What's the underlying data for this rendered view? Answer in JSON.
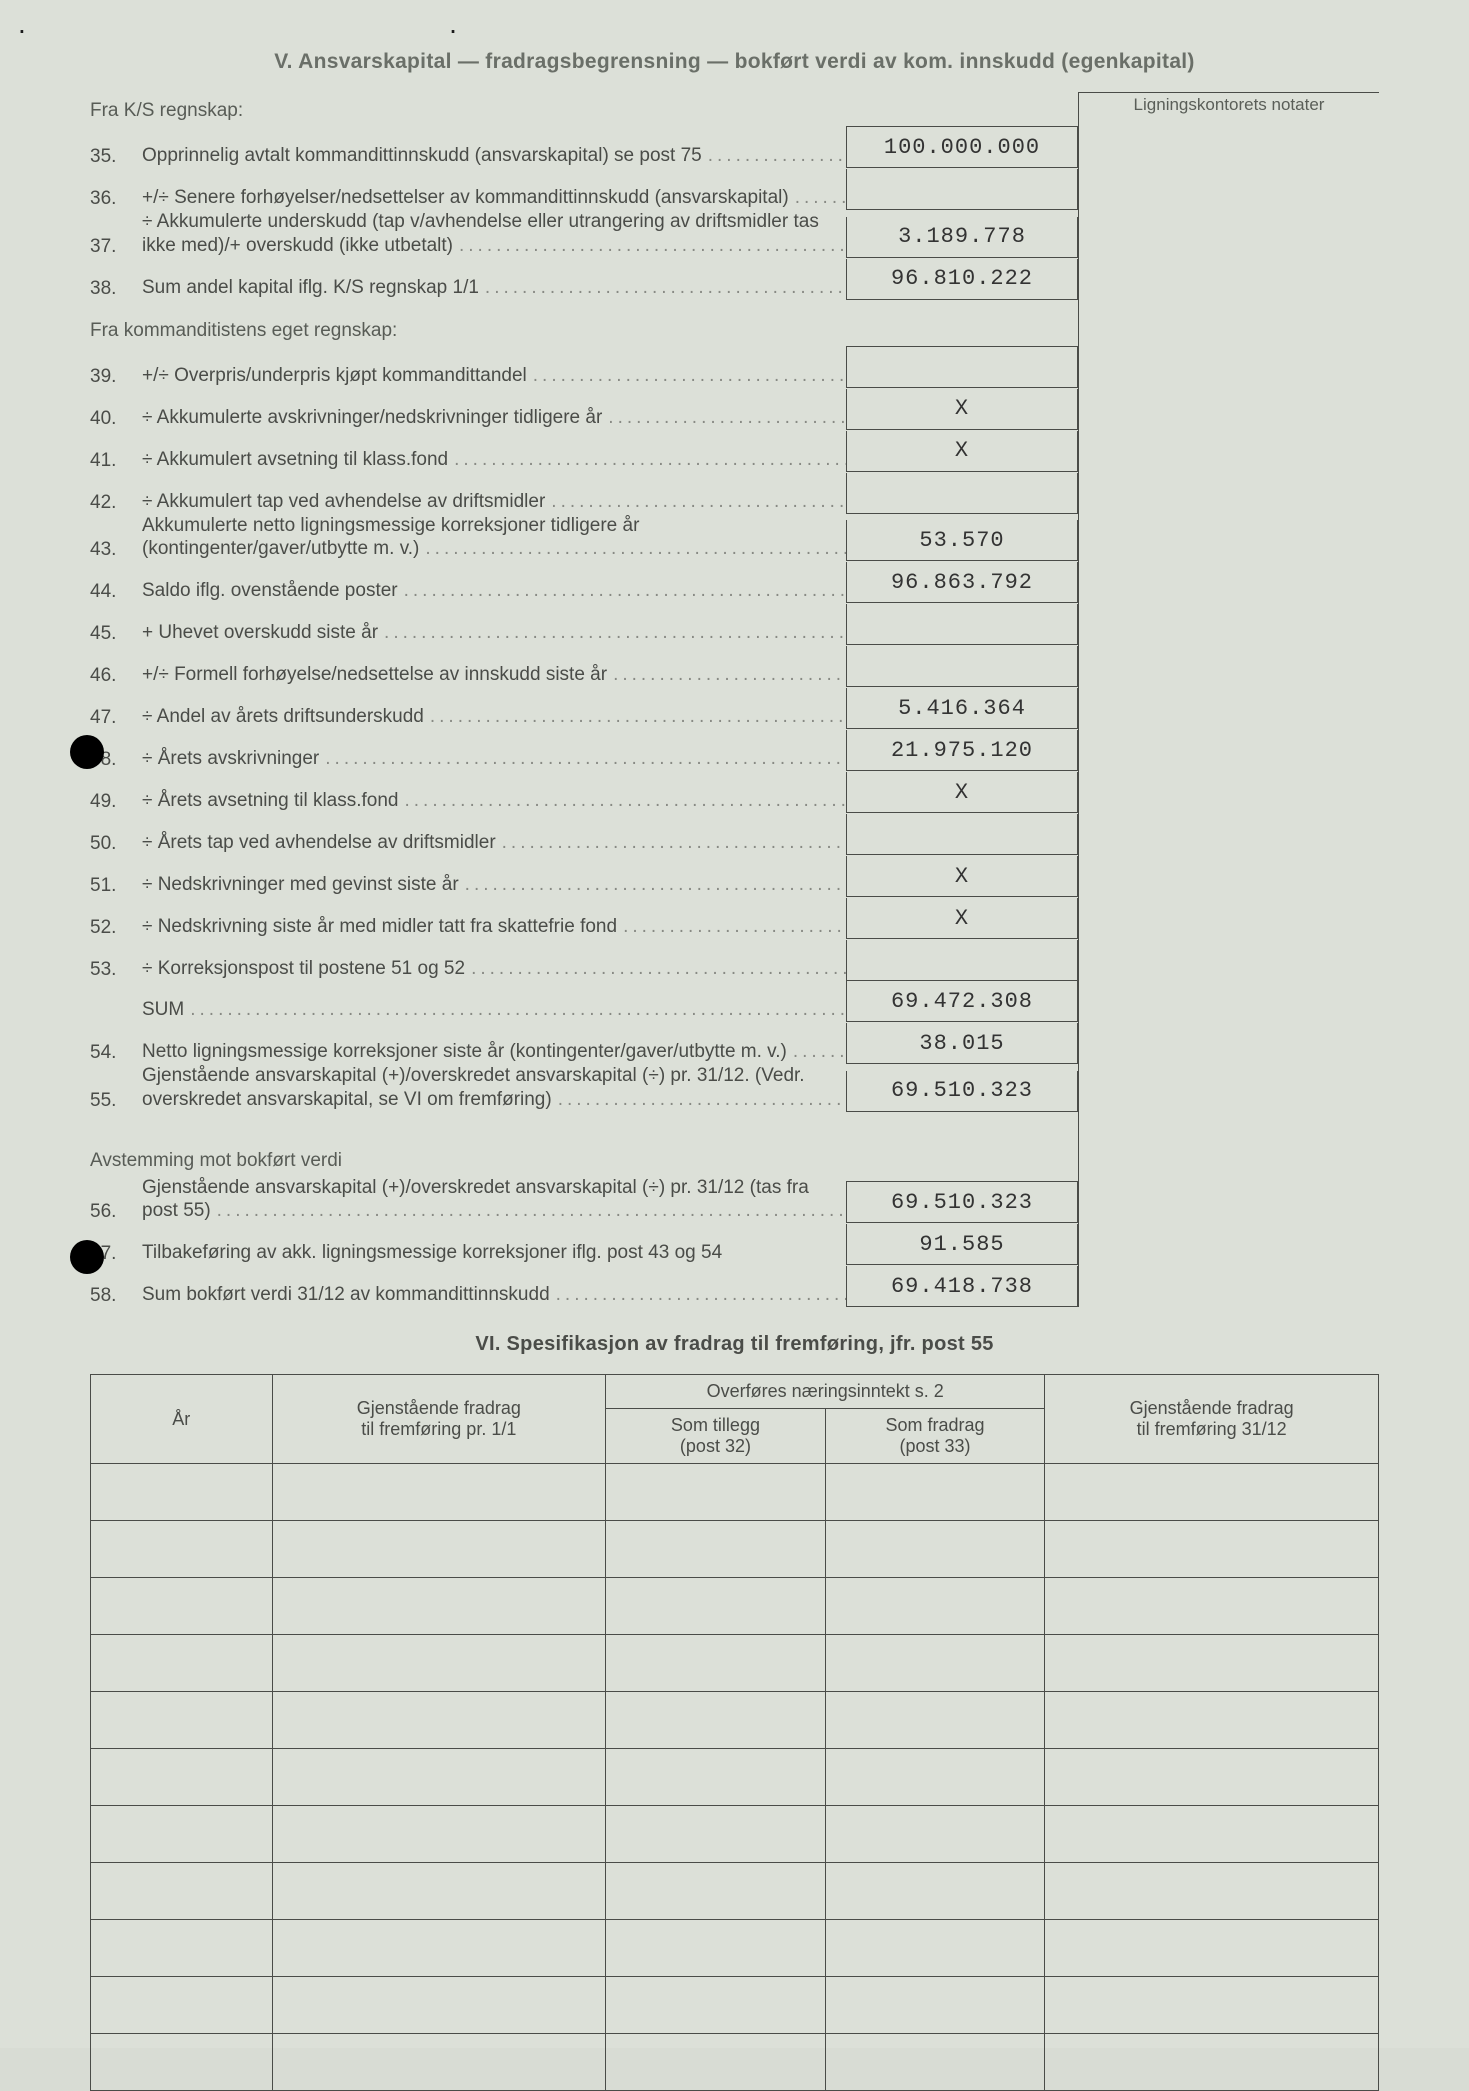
{
  "sectionV_title": "V.  Ansvarskapital — fradragsbegrensning — bokført verdi av kom. innskudd (egenkapital)",
  "notes_header": "Ligningskontorets notater",
  "heading_ks": "Fra K/S regnskap:",
  "heading_kommanditist": "Fra kommanditistens eget regnskap:",
  "heading_avstemming": "Avstemming mot bokført verdi",
  "rows": {
    "r35": {
      "num": "35.",
      "label": "Opprinnelig avtalt kommandittinnskudd (ansvarskapital) se post 75",
      "value": "100.000.000"
    },
    "r36": {
      "num": "36.",
      "label": "+/÷ Senere forhøyelser/nedsettelser av kommandittinnskudd (ansvarskapital)",
      "value": ""
    },
    "r37": {
      "num": "37.",
      "label": "÷ Akkumulerte underskudd (tap v/avhendelse eller utrangering av driftsmidler tas ikke med)/+ overskudd (ikke utbetalt)",
      "value": "3.189.778"
    },
    "r38": {
      "num": "38.",
      "label": "Sum andel kapital iflg. K/S regnskap 1/1",
      "value": "96.810.222"
    },
    "r39": {
      "num": "39.",
      "label": "+/÷ Overpris/underpris kjøpt kommandittandel",
      "value": ""
    },
    "r40": {
      "num": "40.",
      "label": "÷ Akkumulerte avskrivninger/nedskrivninger tidligere år",
      "value": "X"
    },
    "r41": {
      "num": "41.",
      "label": "÷ Akkumulert avsetning til klass.fond",
      "value": "X"
    },
    "r42": {
      "num": "42.",
      "label": "÷ Akkumulert tap ved avhendelse av driftsmidler",
      "value": ""
    },
    "r43": {
      "num": "43.",
      "label": "Akkumulerte netto ligningsmessige korreksjoner tidligere år (kontingenter/gaver/utbytte m. v.)",
      "value": "53.570"
    },
    "r44": {
      "num": "44.",
      "label": "Saldo iflg. ovenstående poster",
      "value": "96.863.792"
    },
    "r45": {
      "num": "45.",
      "label": "+ Uhevet overskudd siste år",
      "value": ""
    },
    "r46": {
      "num": "46.",
      "label": "+/÷ Formell forhøyelse/nedsettelse av innskudd siste år",
      "value": ""
    },
    "r47": {
      "num": "47.",
      "label": "÷ Andel av årets driftsunderskudd",
      "value": "5.416.364"
    },
    "r48": {
      "num": "48.",
      "label": "÷ Årets avskrivninger",
      "value": "21.975.120"
    },
    "r49": {
      "num": "49.",
      "label": "÷ Årets avsetning til klass.fond",
      "value": "X"
    },
    "r50": {
      "num": "50.",
      "label": "÷ Årets tap ved avhendelse av driftsmidler",
      "value": ""
    },
    "r51": {
      "num": "51.",
      "label": "÷ Nedskrivninger med gevinst siste år",
      "value": "X"
    },
    "r52": {
      "num": "52.",
      "label": "÷ Nedskrivning siste år med midler tatt fra skattefrie fond",
      "value": "X"
    },
    "r53": {
      "num": "53.",
      "label": "÷ Korreksjonspost til postene 51 og 52",
      "value": ""
    },
    "rSum": {
      "num": "",
      "label": "SUM",
      "value": "69.472.308"
    },
    "r54": {
      "num": "54.",
      "label": "Netto ligningsmessige korreksjoner siste år (kontingenter/gaver/utbytte m. v.)",
      "value": "38.015"
    },
    "r55": {
      "num": "55.",
      "label": "Gjenstående ansvarskapital (+)/overskredet ansvarskapital (÷) pr. 31/12. (Vedr. overskredet ansvarskapital, se VI om fremføring)",
      "value": "69.510.323"
    },
    "r56": {
      "num": "56.",
      "label": "Gjenstående ansvarskapital (+)/overskredet ansvarskapital (÷) pr. 31/12 (tas fra post 55)",
      "value": "69.510.323"
    },
    "r57": {
      "num": "57.",
      "label": "Tilbakeføring av akk. ligningsmessige korreksjoner iflg. post 43 og 54",
      "value": "91.585"
    },
    "r58": {
      "num": "58.",
      "label": "Sum bokført verdi 31/12 av kommandittinnskudd",
      "value": "69.418.738"
    }
  },
  "sectionVI_title": "VI. Spesifikasjon av fradrag til fremføring, jfr. post 55",
  "table6": {
    "col_year": "År",
    "col_remain_1_1": "Gjenstående fradrag\ntil fremføring pr. 1/1",
    "col_overfores": "Overføres næringsinntekt s. 2",
    "col_tillegg": "Som tillegg\n(post 32)",
    "col_fradrag": "Som fradrag\n(post 33)",
    "col_remain_31_12": "Gjenstående fradrag\ntil fremføring 31/12",
    "empty_rows": 11
  },
  "colors": {
    "background": "#dce0d8",
    "text": "#4a4c48",
    "border": "#4a4c48",
    "typed_value": "#333333"
  }
}
